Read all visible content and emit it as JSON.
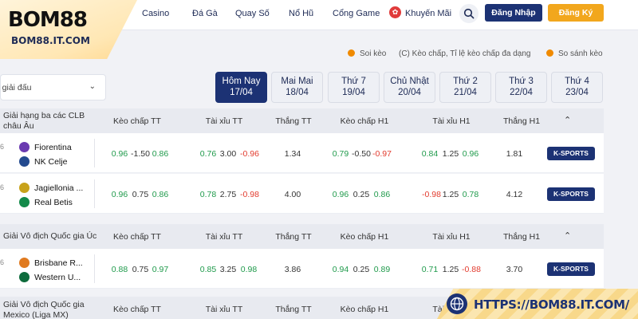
{
  "brand": {
    "logo_text": "BOM88",
    "logo_url": "BOM88.IT.COM"
  },
  "nav": {
    "items": [
      "Casino",
      "Đá Gà",
      "Quay Số",
      "Nổ Hũ",
      "Cổng Game"
    ],
    "promo_label": "Khuyến Mãi",
    "login_label": "Đăng Nhập",
    "register_label": "Đăng Ký"
  },
  "legend": {
    "soi_keo": "Soi kèo",
    "note": "(C) Kèo chấp, Tỉ lệ kèo chấp đa dạng",
    "compare": "So sánh kèo"
  },
  "league_select": {
    "value": "Tất cả giải đấu"
  },
  "date_tabs": [
    {
      "day": "Hôm Nay",
      "date": "17/04"
    },
    {
      "day": "Mai Mai",
      "date": "18/04"
    },
    {
      "day": "Thứ 7",
      "date": "19/04"
    },
    {
      "day": "Chủ Nhật",
      "date": "20/04"
    },
    {
      "day": "Thứ 2",
      "date": "21/04"
    },
    {
      "day": "Thứ 3",
      "date": "22/04"
    },
    {
      "day": "Thứ 4",
      "date": "23/04"
    }
  ],
  "columns": [
    "Kèo chấp TT",
    "Tài xỉu TT",
    "Thắng TT",
    "Kèo chấp H1",
    "Tài xỉu H1",
    "Thắng H1"
  ],
  "provider_label": "K-SPORTS",
  "leagues": [
    {
      "name": "Giải hạng ba các CLB châu Âu",
      "matches": [
        {
          "home": "Fiorentina",
          "away": "NK Celje",
          "hcp_tt": [
            "0.96",
            "-1.50",
            "0.86"
          ],
          "ou_tt": [
            "0.76",
            "3.00",
            "-0.96"
          ],
          "win_tt": "1.34",
          "hcp_h1": [
            "0.79",
            "-0.50",
            "-0.97"
          ],
          "ou_h1": [
            "0.84",
            "1.25",
            "0.96"
          ],
          "win_h1": "1.81"
        },
        {
          "home": "Jagiellonia ...",
          "away": "Real Betis",
          "hcp_tt": [
            "0.96",
            "0.75",
            "0.86"
          ],
          "ou_tt": [
            "0.78",
            "2.75",
            "-0.98"
          ],
          "win_tt": "4.00",
          "hcp_h1": [
            "0.96",
            "0.25",
            "0.86"
          ],
          "ou_h1": [
            "-0.98",
            "1.25",
            "0.78"
          ],
          "win_h1": "4.12"
        }
      ]
    },
    {
      "name": "Giải Vô địch Quốc gia Úc",
      "matches": [
        {
          "home": "Brisbane R...",
          "away": "Western U...",
          "hcp_tt": [
            "0.88",
            "0.75",
            "0.97"
          ],
          "ou_tt": [
            "0.85",
            "3.25",
            "0.98"
          ],
          "win_tt": "3.86",
          "hcp_h1": [
            "0.94",
            "0.25",
            "0.89"
          ],
          "ou_h1": [
            "0.71",
            "1.25",
            "-0.88"
          ],
          "win_h1": "3.70"
        }
      ]
    },
    {
      "name": "Giải Vô địch Quốc gia Mexico (Liga MX)",
      "matches": []
    }
  ],
  "banner": {
    "url": "HTTPS://BOM88.IT.COM/"
  },
  "colors": {
    "navy": "#1c3274",
    "orange": "#f2a71d",
    "green": "#1f9a4b",
    "red": "#e23b2e"
  }
}
